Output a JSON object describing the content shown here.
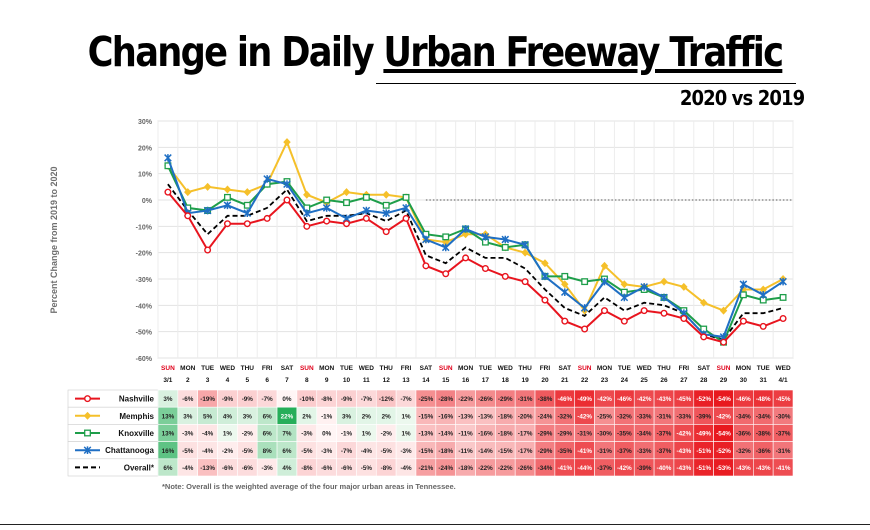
{
  "header": {
    "title_part1": "Change in Daily ",
    "title_part2": "Urban Freeway Traffic",
    "subtitle": "2020 vs 2019"
  },
  "note": "*Note: Overall is the weighted average of the four major urban areas in Tennessee.",
  "chart_data": {
    "type": "line",
    "title": "Change in Daily Urban Freeway Traffic",
    "subtitle": "2020 vs 2019",
    "ylabel": "Percent Change from 2019 to 2020",
    "ylim": [
      -60,
      30
    ],
    "yticks": [
      "30%",
      "20%",
      "10%",
      "0%",
      "-10%",
      "-20%",
      "-30%",
      "-40%",
      "-50%",
      "-60%"
    ],
    "grid": true,
    "zero_line": "dashed",
    "days": [
      "SUN",
      "MON",
      "TUE",
      "WED",
      "THU",
      "FRI",
      "SAT",
      "SUN",
      "MON",
      "TUE",
      "WED",
      "THU",
      "FRI",
      "SAT",
      "SUN",
      "MON",
      "TUE",
      "WED",
      "THU",
      "FRI",
      "SAT",
      "SUN",
      "MON",
      "TUE",
      "WED",
      "THU",
      "FRI",
      "SAT",
      "SUN",
      "MON",
      "TUE",
      "WED"
    ],
    "dates": [
      "3/1",
      "2",
      "3",
      "4",
      "5",
      "6",
      "7",
      "8",
      "9",
      "10",
      "11",
      "12",
      "13",
      "14",
      "15",
      "16",
      "17",
      "18",
      "19",
      "20",
      "21",
      "22",
      "23",
      "24",
      "25",
      "26",
      "27",
      "28",
      "29",
      "30",
      "31",
      "4/1"
    ],
    "series": [
      {
        "name": "Nashville",
        "color": "#e8141e",
        "marker": "circle",
        "values": [
          3,
          -6,
          -19,
          -9,
          -9,
          -7,
          0,
          -10,
          -8,
          -9,
          -7,
          -12,
          -7,
          -25,
          -28,
          -22,
          -26,
          -29,
          -31,
          -38,
          -46,
          -49,
          -42,
          -46,
          -42,
          -43,
          -45,
          -52,
          -54,
          -46,
          -48,
          -45
        ],
        "labels": [
          "3%",
          "-6%",
          "-19%",
          "-9%",
          "-9%",
          "-7%",
          "0%",
          "-10%",
          "-8%",
          "-9%",
          "-7%",
          "-12%",
          "-7%",
          "-25%",
          "-28%",
          "-22%",
          "-26%",
          "-29%",
          "-31%",
          "-38%",
          "-46%",
          "-49%",
          "-42%",
          "-46%",
          "-42%",
          "-43%",
          "-45%",
          "-52%",
          "-54%",
          "-46%",
          "-48%",
          "-45%"
        ]
      },
      {
        "name": "Memphis",
        "color": "#f5c02a",
        "marker": "diamond",
        "values": [
          13,
          3,
          5,
          4,
          3,
          6,
          22,
          2,
          -1,
          3,
          2,
          2,
          1,
          -15,
          -16,
          -13,
          -13,
          -18,
          -20,
          -24,
          -32,
          -42,
          -25,
          -32,
          -33,
          -31,
          -33,
          -39,
          -42,
          -34,
          -34,
          -30
        ],
        "labels": [
          "13%",
          "3%",
          "5%",
          "4%",
          "3%",
          "6%",
          "22%",
          "2%",
          "-1%",
          "3%",
          "2%",
          "2%",
          "1%",
          "-15%",
          "-16%",
          "-13%",
          "-13%",
          "-18%",
          "-20%",
          "-24%",
          "-32%",
          "-42%",
          "-25%",
          "-32%",
          "-33%",
          "-31%",
          "-33%",
          "-39%",
          "-42%",
          "-34%",
          "-34%",
          "-30%"
        ]
      },
      {
        "name": "Knoxville",
        "color": "#1e9e4a",
        "marker": "square",
        "values": [
          13,
          -3,
          -4,
          1,
          -2,
          6,
          7,
          -3,
          0,
          -1,
          1,
          -2,
          1,
          -13,
          -14,
          -11,
          -16,
          -18,
          -17,
          -29,
          -29,
          -31,
          -30,
          -35,
          -34,
          -37,
          -42,
          -49,
          -54,
          -36,
          -38,
          -37
        ],
        "labels": [
          "13%",
          "-3%",
          "-4%",
          "1%",
          "-2%",
          "6%",
          "7%",
          "-3%",
          "0%",
          "-1%",
          "1%",
          "-2%",
          "1%",
          "-13%",
          "-14%",
          "-11%",
          "-16%",
          "-18%",
          "-17%",
          "-29%",
          "-29%",
          "-31%",
          "-30%",
          "-35%",
          "-34%",
          "-37%",
          "-42%",
          "-49%",
          "-54%",
          "-36%",
          "-38%",
          "-37%"
        ]
      },
      {
        "name": "Chattanooga",
        "color": "#1f6fc4",
        "marker": "star",
        "values": [
          16,
          -5,
          -4,
          -2,
          -5,
          8,
          6,
          -5,
          -3,
          -7,
          -4,
          -5,
          -3,
          -15,
          -18,
          -11,
          -14,
          -15,
          -17,
          -29,
          -35,
          -41,
          -31,
          -37,
          -33,
          -37,
          -43,
          -51,
          -52,
          -32,
          -36,
          -31
        ],
        "labels": [
          "16%",
          "-5%",
          "-4%",
          "-2%",
          "-5%",
          "8%",
          "6%",
          "-5%",
          "-3%",
          "-7%",
          "-4%",
          "-5%",
          "-3%",
          "-15%",
          "-18%",
          "-11%",
          "-14%",
          "-15%",
          "-17%",
          "-29%",
          "-35%",
          "-41%",
          "-31%",
          "-37%",
          "-33%",
          "-37%",
          "-43%",
          "-51%",
          "-52%",
          "-32%",
          "-36%",
          "-31%"
        ]
      },
      {
        "name": "Overall*",
        "color": "#000000",
        "marker": "dash",
        "values": [
          6,
          -4,
          -13,
          -6,
          -6,
          -3,
          4,
          -8,
          -6,
          -6,
          -5,
          -8,
          -4,
          -21,
          -24,
          -18,
          -22,
          -22,
          -26,
          -34,
          -41,
          -44,
          -37,
          -42,
          -39,
          -40,
          -43,
          -51,
          -53,
          -43,
          -43,
          -41
        ],
        "labels": [
          "6%",
          "-4%",
          "-13%",
          "-6%",
          "-6%",
          "-3%",
          "4%",
          "-8%",
          "-6%",
          "-6%",
          "-5%",
          "-8%",
          "-4%",
          "-21%",
          "-24%",
          "-18%",
          "-22%",
          "-22%",
          "-26%",
          "-34%",
          "-41%",
          "-44%",
          "-37%",
          "-42%",
          "-39%",
          "-40%",
          "-43%",
          "-51%",
          "-53%",
          "-43%",
          "-43%",
          "-41%"
        ]
      }
    ]
  }
}
